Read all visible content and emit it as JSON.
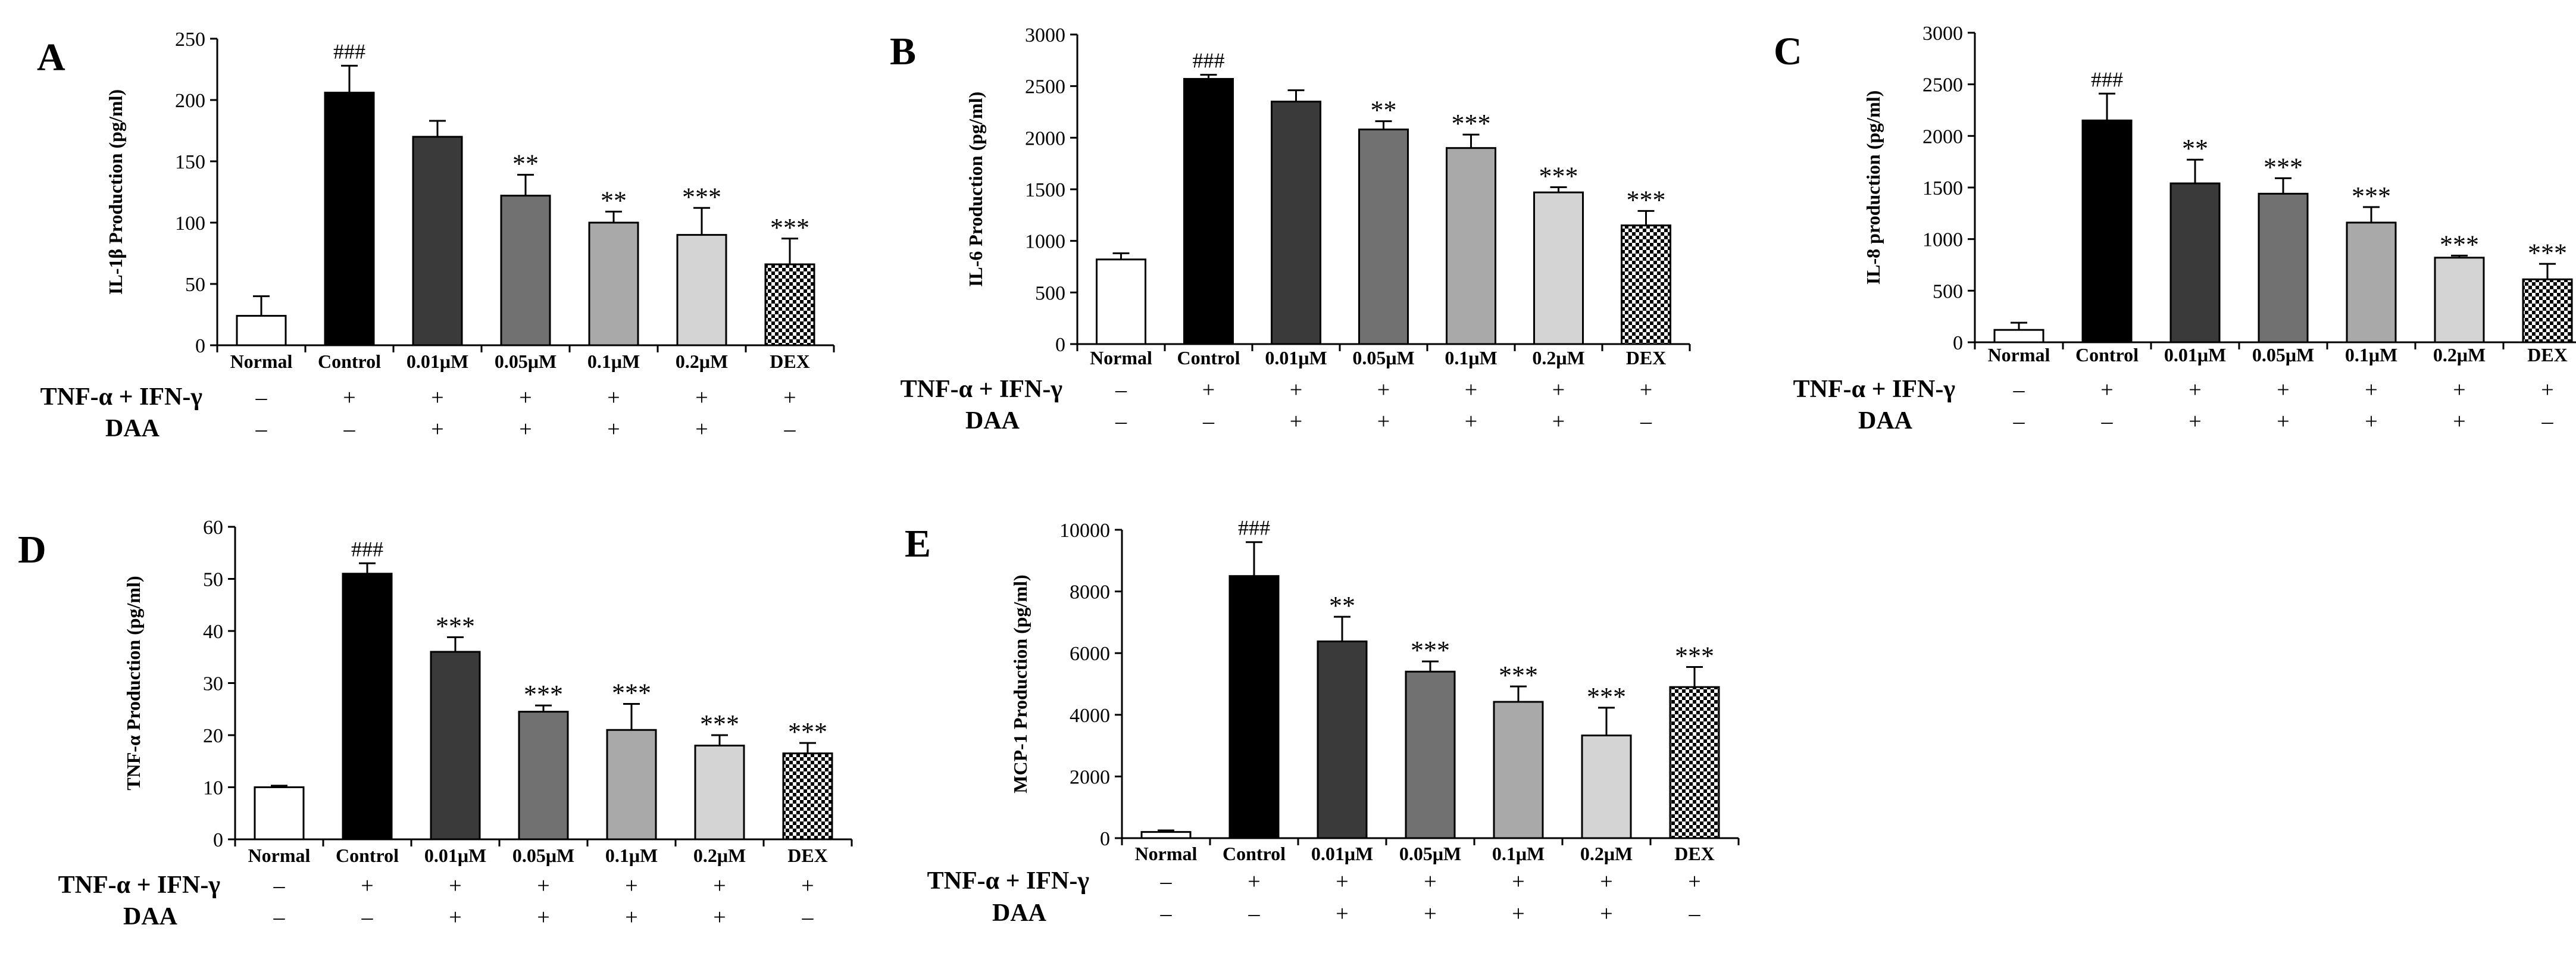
{
  "figure": {
    "treatment_row_label": "TNF-α + IFN-γ",
    "drug_row_label": "DAA"
  },
  "chart_data": [
    {
      "panel": "A",
      "type": "bar",
      "ylabel": "IL-1β Production (pg/ml)",
      "ylim": [
        0,
        250
      ],
      "ytick_values": [
        0,
        50,
        100,
        150,
        200,
        250
      ],
      "ytick_labels": [
        "0",
        "50",
        "100",
        "150",
        "200",
        "250"
      ],
      "categories": [
        "Normal",
        "Control",
        "0.01μM",
        "0.05μM",
        "0.1μM",
        "0.2μM",
        "DEX"
      ],
      "values": [
        24,
        206,
        170,
        122,
        100,
        90,
        66
      ],
      "errors": [
        16,
        22,
        13,
        17,
        9,
        22,
        21
      ],
      "annotations": [
        "",
        "###",
        "",
        "**",
        "**",
        "***",
        "***"
      ],
      "treatment": [
        "–",
        "+",
        "+",
        "+",
        "+",
        "+",
        "+"
      ],
      "daa": [
        "–",
        "–",
        "+",
        "+",
        "+",
        "+",
        "–"
      ]
    },
    {
      "panel": "B",
      "type": "bar",
      "ylabel": "IL-6 Production (pg/ml)",
      "ylim": [
        0,
        3000
      ],
      "ytick_values": [
        0,
        500,
        1000,
        1500,
        2000,
        2500,
        3000
      ],
      "ytick_labels": [
        "0",
        "500",
        "1000",
        "1500",
        "2000",
        "2500",
        "3000"
      ],
      "categories": [
        "Normal",
        "Control",
        "0.01μM",
        "0.05μM",
        "0.1μM",
        "0.2μM",
        "DEX"
      ],
      "values": [
        820,
        2570,
        2350,
        2080,
        1900,
        1470,
        1150
      ],
      "errors": [
        60,
        40,
        110,
        80,
        130,
        50,
        140
      ],
      "annotations": [
        "",
        "###",
        "",
        "**",
        "***",
        "***",
        "***"
      ],
      "treatment": [
        "–",
        "+",
        "+",
        "+",
        "+",
        "+",
        "+"
      ],
      "daa": [
        "–",
        "–",
        "+",
        "+",
        "+",
        "+",
        "–"
      ]
    },
    {
      "panel": "C",
      "type": "bar",
      "ylabel": "IL-8 production (pg/ml)",
      "ylim": [
        0,
        3000
      ],
      "ytick_values": [
        0,
        500,
        1000,
        1500,
        2000,
        2500,
        3000
      ],
      "ytick_labels": [
        "0",
        "500",
        "1000",
        "1500",
        "2000",
        "2500",
        "3000"
      ],
      "categories": [
        "Normal",
        "Control",
        "0.01μM",
        "0.05μM",
        "0.1μM",
        "0.2μM",
        "DEX"
      ],
      "values": [
        120,
        2150,
        1540,
        1440,
        1160,
        820,
        610
      ],
      "errors": [
        70,
        260,
        230,
        150,
        150,
        20,
        150
      ],
      "annotations": [
        "",
        "###",
        "**",
        "***",
        "***",
        "***",
        "***"
      ],
      "treatment": [
        "–",
        "+",
        "+",
        "+",
        "+",
        "+",
        "+"
      ],
      "daa": [
        "–",
        "–",
        "+",
        "+",
        "+",
        "+",
        "–"
      ]
    },
    {
      "panel": "D",
      "type": "bar",
      "ylabel": "TNF-α Production (pg/ml)",
      "ylim": [
        0,
        60
      ],
      "ytick_values": [
        0,
        10,
        20,
        30,
        40,
        50,
        60
      ],
      "ytick_labels": [
        "0",
        "10",
        "20",
        "30",
        "40",
        "50",
        "60"
      ],
      "categories": [
        "Normal",
        "Control",
        "0.01μM",
        "0.05μM",
        "0.1μM",
        "0.2μM",
        "DEX"
      ],
      "values": [
        10,
        51,
        36,
        24.5,
        21,
        18,
        16.5
      ],
      "errors": [
        0.3,
        2,
        2.8,
        1.2,
        5,
        2,
        2
      ],
      "annotations": [
        "",
        "###",
        "***",
        "***",
        "***",
        "***",
        "***"
      ],
      "treatment": [
        "–",
        "+",
        "+",
        "+",
        "+",
        "+",
        "+"
      ],
      "daa": [
        "–",
        "–",
        "+",
        "+",
        "+",
        "+",
        "–"
      ]
    },
    {
      "panel": "E",
      "type": "bar",
      "ylabel": "MCP-1 Production (pg/ml)",
      "ylim": [
        0,
        10000
      ],
      "ytick_values": [
        0,
        2000,
        4000,
        6000,
        8000,
        10000
      ],
      "ytick_labels": [
        "0",
        "2000",
        "4000",
        "6000",
        "8000",
        "10000"
      ],
      "categories": [
        "Normal",
        "Control",
        "0.01μM",
        "0.05μM",
        "0.1μM",
        "0.2μM",
        "DEX"
      ],
      "values": [
        200,
        8500,
        6380,
        5400,
        4420,
        3330,
        4900
      ],
      "errors": [
        50,
        1100,
        800,
        330,
        500,
        900,
        650
      ],
      "annotations": [
        "",
        "###",
        "**",
        "***",
        "***",
        "***",
        "***"
      ],
      "treatment": [
        "–",
        "+",
        "+",
        "+",
        "+",
        "+",
        "+"
      ],
      "daa": [
        "–",
        "–",
        "+",
        "+",
        "+",
        "+",
        "–"
      ]
    }
  ]
}
